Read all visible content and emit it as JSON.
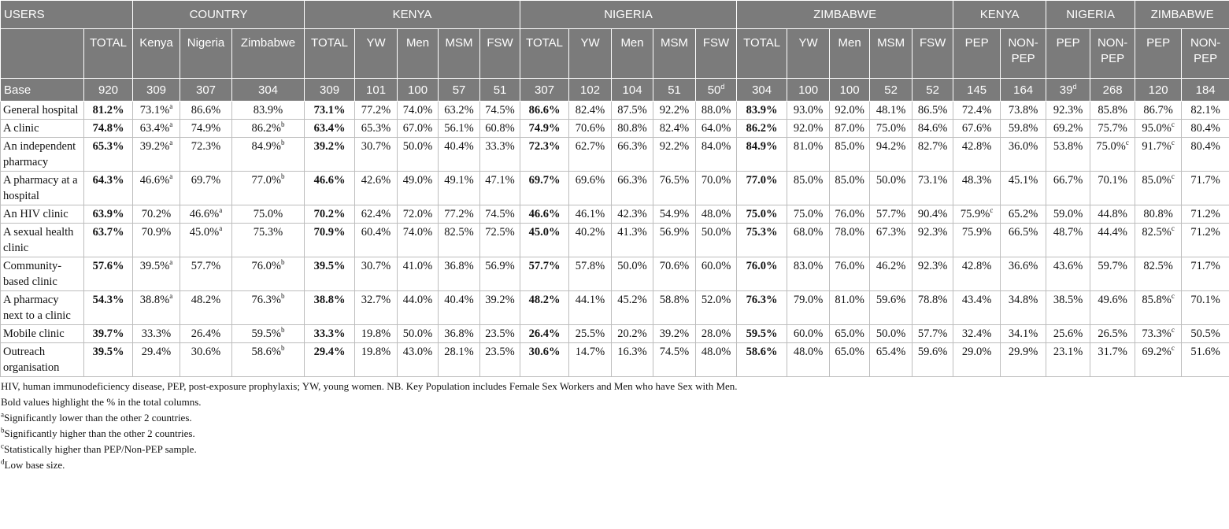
{
  "table": {
    "groups": [
      "USERS",
      "COUNTRY",
      "KENYA",
      "NIGERIA",
      "ZIMBABWE",
      "KENYA",
      "NIGERIA",
      "ZIMBABWE"
    ],
    "columns": [
      "TOTAL",
      "Kenya",
      "Nigeria",
      "Zimbabwe",
      "TOTAL",
      "YW",
      "Men",
      "MSM",
      "FSW",
      "TOTAL",
      "YW",
      "Men",
      "MSM",
      "FSW",
      "TOTAL",
      "YW",
      "Men",
      "MSM",
      "FSW",
      "PEP",
      "NON-PEP",
      "PEP",
      "NON-PEP",
      "PEP",
      "NON-PEP"
    ],
    "base": {
      "label": "Base",
      "cells": [
        "920",
        "309",
        "307",
        "304",
        "309",
        "101",
        "100",
        "57",
        "51",
        "307",
        "102",
        "104",
        "51",
        {
          "text": "50",
          "sup": "d"
        },
        "304",
        "100",
        "100",
        "52",
        "52",
        "145",
        "164",
        {
          "text": "39",
          "sup": "d"
        },
        "268",
        "120",
        "184"
      ]
    },
    "rows": [
      {
        "label": "General hospital",
        "cells": [
          "81.2%",
          {
            "text": "73.1%",
            "sup": "a"
          },
          "86.6%",
          "83.9%",
          "73.1%",
          "77.2%",
          "74.0%",
          "63.2%",
          "74.5%",
          "86.6%",
          "82.4%",
          "87.5%",
          "92.2%",
          "88.0%",
          "83.9%",
          "93.0%",
          "92.0%",
          "48.1%",
          "86.5%",
          "72.4%",
          "73.8%",
          "92.3%",
          "85.8%",
          "86.7%",
          "82.1%"
        ]
      },
      {
        "label": "A clinic",
        "cells": [
          "74.8%",
          {
            "text": "63.4%",
            "sup": "a"
          },
          "74.9%",
          {
            "text": "86.2%",
            "sup": "b"
          },
          "63.4%",
          "65.3%",
          "67.0%",
          "56.1%",
          "60.8%",
          "74.9%",
          "70.6%",
          "80.8%",
          "82.4%",
          "64.0%",
          "86.2%",
          "92.0%",
          "87.0%",
          "75.0%",
          "84.6%",
          "67.6%",
          "59.8%",
          "69.2%",
          "75.7%",
          {
            "text": "95.0%",
            "sup": "c"
          },
          "80.4%"
        ]
      },
      {
        "label": "An independent pharmacy",
        "cells": [
          "65.3%",
          {
            "text": "39.2%",
            "sup": "a"
          },
          "72.3%",
          {
            "text": "84.9%",
            "sup": "b"
          },
          "39.2%",
          "30.7%",
          "50.0%",
          "40.4%",
          "33.3%",
          "72.3%",
          "62.7%",
          "66.3%",
          "92.2%",
          "84.0%",
          "84.9%",
          "81.0%",
          "85.0%",
          "94.2%",
          "82.7%",
          "42.8%",
          "36.0%",
          "53.8%",
          {
            "text": "75.0%",
            "sup": "c"
          },
          {
            "text": "91.7%",
            "sup": "c"
          },
          "80.4%"
        ]
      },
      {
        "label": "A pharmacy at a hospital",
        "cells": [
          "64.3%",
          {
            "text": "46.6%",
            "sup": "a"
          },
          "69.7%",
          {
            "text": "77.0%",
            "sup": "b"
          },
          "46.6%",
          "42.6%",
          "49.0%",
          "49.1%",
          "47.1%",
          "69.7%",
          "69.6%",
          "66.3%",
          "76.5%",
          "70.0%",
          "77.0%",
          "85.0%",
          "85.0%",
          "50.0%",
          "73.1%",
          "48.3%",
          "45.1%",
          "66.7%",
          "70.1%",
          {
            "text": "85.0%",
            "sup": "c"
          },
          "71.7%"
        ]
      },
      {
        "label": "An HIV clinic",
        "cells": [
          "63.9%",
          "70.2%",
          {
            "text": "46.6%",
            "sup": "a"
          },
          "75.0%",
          "70.2%",
          "62.4%",
          "72.0%",
          "77.2%",
          "74.5%",
          "46.6%",
          "46.1%",
          "42.3%",
          "54.9%",
          "48.0%",
          "75.0%",
          "75.0%",
          "76.0%",
          "57.7%",
          "90.4%",
          {
            "text": "75.9%",
            "sup": "c"
          },
          "65.2%",
          "59.0%",
          "44.8%",
          "80.8%",
          "71.2%"
        ]
      },
      {
        "label": "A sexual health clinic",
        "cells": [
          "63.7%",
          "70.9%",
          {
            "text": "45.0%",
            "sup": "a"
          },
          "75.3%",
          "70.9%",
          "60.4%",
          "74.0%",
          "82.5%",
          "72.5%",
          "45.0%",
          "40.2%",
          "41.3%",
          "56.9%",
          "50.0%",
          "75.3%",
          "68.0%",
          "78.0%",
          "67.3%",
          "92.3%",
          "75.9%",
          "66.5%",
          "48.7%",
          "44.4%",
          {
            "text": "82.5%",
            "sup": "c"
          },
          "71.2%"
        ]
      },
      {
        "label": "Community-based clinic",
        "cells": [
          "57.6%",
          {
            "text": "39.5%",
            "sup": "a"
          },
          "57.7%",
          {
            "text": "76.0%",
            "sup": "b"
          },
          "39.5%",
          "30.7%",
          "41.0%",
          "36.8%",
          "56.9%",
          "57.7%",
          "57.8%",
          "50.0%",
          "70.6%",
          "60.0%",
          "76.0%",
          "83.0%",
          "76.0%",
          "46.2%",
          "92.3%",
          "42.8%",
          "36.6%",
          "43.6%",
          "59.7%",
          "82.5%",
          "71.7%"
        ]
      },
      {
        "label": "A pharmacy next to a clinic",
        "cells": [
          "54.3%",
          {
            "text": "38.8%",
            "sup": "a"
          },
          "48.2%",
          {
            "text": "76.3%",
            "sup": "b"
          },
          "38.8%",
          "32.7%",
          "44.0%",
          "40.4%",
          "39.2%",
          "48.2%",
          "44.1%",
          "45.2%",
          "58.8%",
          "52.0%",
          "76.3%",
          "79.0%",
          "81.0%",
          "59.6%",
          "78.8%",
          "43.4%",
          "34.8%",
          "38.5%",
          "49.6%",
          {
            "text": "85.8%",
            "sup": "c"
          },
          "70.1%"
        ]
      },
      {
        "label": "Mobile clinic",
        "cells": [
          "39.7%",
          "33.3%",
          "26.4%",
          {
            "text": "59.5%",
            "sup": "b"
          },
          "33.3%",
          "19.8%",
          "50.0%",
          "36.8%",
          "23.5%",
          "26.4%",
          "25.5%",
          "20.2%",
          "39.2%",
          "28.0%",
          "59.5%",
          "60.0%",
          "65.0%",
          "50.0%",
          "57.7%",
          "32.4%",
          "34.1%",
          "25.6%",
          "26.5%",
          {
            "text": "73.3%",
            "sup": "c"
          },
          "50.5%"
        ]
      },
      {
        "label": "Outreach organisation",
        "cells": [
          "39.5%",
          "29.4%",
          "30.6%",
          {
            "text": "58.6%",
            "sup": "b"
          },
          "29.4%",
          "19.8%",
          "43.0%",
          "28.1%",
          "23.5%",
          "30.6%",
          "14.7%",
          "16.3%",
          "74.5%",
          "48.0%",
          "58.6%",
          "48.0%",
          "65.0%",
          "65.4%",
          "59.6%",
          "29.0%",
          "29.9%",
          "23.1%",
          "31.7%",
          {
            "text": "69.2%",
            "sup": "c"
          },
          "51.6%"
        ]
      }
    ]
  },
  "notes": [
    "HIV, human immunodeficiency disease, PEP, post-exposure prophylaxis; YW, young women. NB. Key Population includes Female Sex Workers and Men who have Sex with Men.",
    "Bold values highlight the % in the total columns.",
    {
      "sup": "a",
      "text": "Significantly lower than the other 2 countries."
    },
    {
      "sup": "b",
      "text": "Significantly higher than the other 2 countries."
    },
    {
      "sup": "c",
      "text": "Statistically higher than PEP/Non-PEP sample."
    },
    {
      "sup": "d",
      "text": "Low base size."
    }
  ]
}
